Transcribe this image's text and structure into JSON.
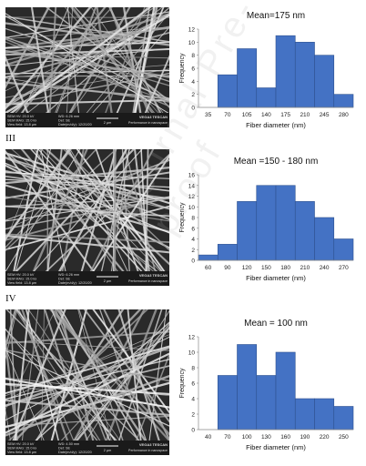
{
  "panel_labels": [
    "III",
    "IV"
  ],
  "watermark": "Journal Pre-proof",
  "sem_panels": [
    {
      "info_left": [
        "SEM HV: 20.0 kV",
        "SEM MAG: 15.0 kx",
        "View field: 13.8 µm"
      ],
      "info_mid": [
        "WD: 6.26 mm",
        "Det: SE",
        "Date(m/d/y): 12/20/20"
      ],
      "scale": "2 µm",
      "brand": "VEGA3 TESCAN",
      "tagline": "Performance in nanospace"
    },
    {
      "info_left": [
        "SEM HV: 20.0 kV",
        "SEM MAG: 15.0 kx",
        "View field: 13.8 µm"
      ],
      "info_mid": [
        "WD: 6.26 mm",
        "Det: SE",
        "Date(m/d/y): 12/20/20"
      ],
      "scale": "2 µm",
      "brand": "VEGA3 TESCAN",
      "tagline": "Performance in nanospace"
    },
    {
      "info_left": [
        "SEM HV: 20.0 kV",
        "SEM MAG: 15.0 kx",
        "View field: 13.8 µm"
      ],
      "info_mid": [
        "WD: 4.50 mm",
        "Det: SE",
        "Date(m/d/y): 12/20/20"
      ],
      "scale": "2 µm",
      "brand": "VEGA3 TESCAN",
      "tagline": "Performance in nanospace"
    }
  ],
  "colors": {
    "bar": "#4472c4",
    "bar_edge": "#2f528f"
  },
  "chart_data": [
    {
      "type": "bar",
      "title": "Mean=175 nm",
      "xlabel": "Fiber diameter (nm)",
      "ylabel": "Frequency",
      "x_ticks": [
        "35",
        "70",
        "105",
        "140",
        "175",
        "210",
        "245",
        "280"
      ],
      "bin_edges": [
        52.5,
        87.5,
        122.5,
        157.5,
        192.5,
        227.5,
        262.5,
        297.5
      ],
      "values": [
        5,
        9,
        3,
        11,
        10,
        8,
        2
      ],
      "ylim": [
        0,
        12
      ],
      "y_ticks": [
        0,
        2,
        4,
        6,
        8,
        10,
        12
      ]
    },
    {
      "type": "bar",
      "title": "Mean =150 - 180 nm",
      "xlabel": "Fiber diameter (nm)",
      "ylabel": "Frequency",
      "x_ticks": [
        "60",
        "90",
        "120",
        "150",
        "180",
        "210",
        "240",
        "270"
      ],
      "bin_edges": [
        45,
        75,
        105,
        135,
        165,
        195,
        225,
        255,
        285
      ],
      "values": [
        1,
        3,
        11,
        14,
        14,
        11,
        8,
        4
      ],
      "ylim": [
        0,
        16
      ],
      "y_ticks": [
        0,
        2,
        4,
        6,
        8,
        10,
        12,
        14,
        16
      ]
    },
    {
      "type": "bar",
      "title": "Mean = 100 nm",
      "xlabel": "Fiber diameter (nm)",
      "ylabel": "Frequency",
      "x_ticks": [
        "40",
        "70",
        "100",
        "130",
        "160",
        "190",
        "220",
        "250"
      ],
      "bin_edges": [
        55,
        85,
        115,
        145,
        175,
        205,
        235,
        265
      ],
      "values": [
        7,
        11,
        7,
        10,
        4,
        4,
        3
      ],
      "ylim": [
        0,
        12
      ],
      "y_ticks": [
        0,
        2,
        4,
        6,
        8,
        10,
        12
      ]
    }
  ]
}
